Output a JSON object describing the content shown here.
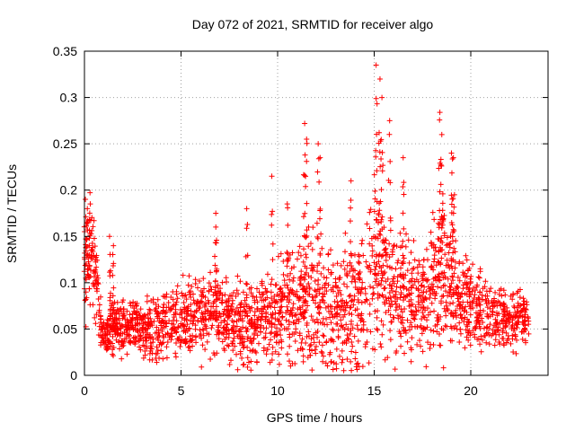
{
  "chart_data": {
    "type": "scatter",
    "title": "Day 072 of 2021, SRMTID for receiver algo",
    "xlabel": "GPS time / hours",
    "ylabel": "SRMTID / TECUs",
    "xlim": [
      0,
      24
    ],
    "ylim": [
      0,
      0.35
    ],
    "xticks": [
      0,
      5,
      10,
      15,
      20
    ],
    "xtick_labels": [
      "0",
      "5",
      "10",
      "15",
      "20"
    ],
    "yticks": [
      0,
      0.05,
      0.1,
      0.15,
      0.2,
      0.25,
      0.3,
      0.35
    ],
    "ytick_labels": [
      "0",
      "0.05",
      "0.1",
      "0.15",
      "0.2",
      "0.25",
      "0.3",
      "0.35"
    ],
    "grid": true,
    "marker": "+",
    "marker_color": "#ff0000",
    "series": [
      {
        "name": "SRMTID",
        "envelope": [
          [
            0.0,
            0.1,
            0.04
          ],
          [
            0.3,
            0.13,
            0.04
          ],
          [
            0.6,
            0.11,
            0.03
          ],
          [
            0.9,
            0.04,
            0.015
          ],
          [
            1.5,
            0.05,
            0.02
          ],
          [
            2.5,
            0.05,
            0.02
          ],
          [
            3.5,
            0.05,
            0.025
          ],
          [
            4.5,
            0.06,
            0.025
          ],
          [
            5.5,
            0.06,
            0.03
          ],
          [
            6.5,
            0.07,
            0.03
          ],
          [
            7.5,
            0.06,
            0.03
          ],
          [
            8.5,
            0.05,
            0.03
          ],
          [
            9.5,
            0.06,
            0.035
          ],
          [
            10.5,
            0.07,
            0.04
          ],
          [
            11.5,
            0.08,
            0.05
          ],
          [
            12.5,
            0.07,
            0.04
          ],
          [
            13.5,
            0.07,
            0.05
          ],
          [
            14.5,
            0.08,
            0.05
          ],
          [
            15.2,
            0.12,
            0.08
          ],
          [
            16.0,
            0.09,
            0.05
          ],
          [
            17.0,
            0.08,
            0.04
          ],
          [
            18.0,
            0.09,
            0.05
          ],
          [
            18.5,
            0.11,
            0.06
          ],
          [
            19.5,
            0.08,
            0.04
          ],
          [
            20.5,
            0.07,
            0.03
          ],
          [
            21.5,
            0.06,
            0.02
          ],
          [
            22.5,
            0.06,
            0.02
          ],
          [
            23.0,
            0.06,
            0.02
          ]
        ],
        "spikes": [
          [
            0.05,
            0.19
          ],
          [
            0.15,
            0.18
          ],
          [
            0.3,
            0.185
          ],
          [
            1.3,
            0.15
          ],
          [
            1.5,
            0.14
          ],
          [
            6.8,
            0.175
          ],
          [
            8.4,
            0.18
          ],
          [
            9.7,
            0.215
          ],
          [
            10.5,
            0.185
          ],
          [
            11.4,
            0.272
          ],
          [
            11.5,
            0.255
          ],
          [
            12.1,
            0.25
          ],
          [
            12.2,
            0.235
          ],
          [
            13.8,
            0.21
          ],
          [
            15.1,
            0.335
          ],
          [
            15.3,
            0.32
          ],
          [
            15.4,
            0.3
          ],
          [
            15.8,
            0.275
          ],
          [
            16.5,
            0.235
          ],
          [
            18.4,
            0.284
          ],
          [
            18.5,
            0.26
          ],
          [
            19.0,
            0.24
          ],
          [
            19.1,
            0.235
          ]
        ]
      }
    ]
  }
}
